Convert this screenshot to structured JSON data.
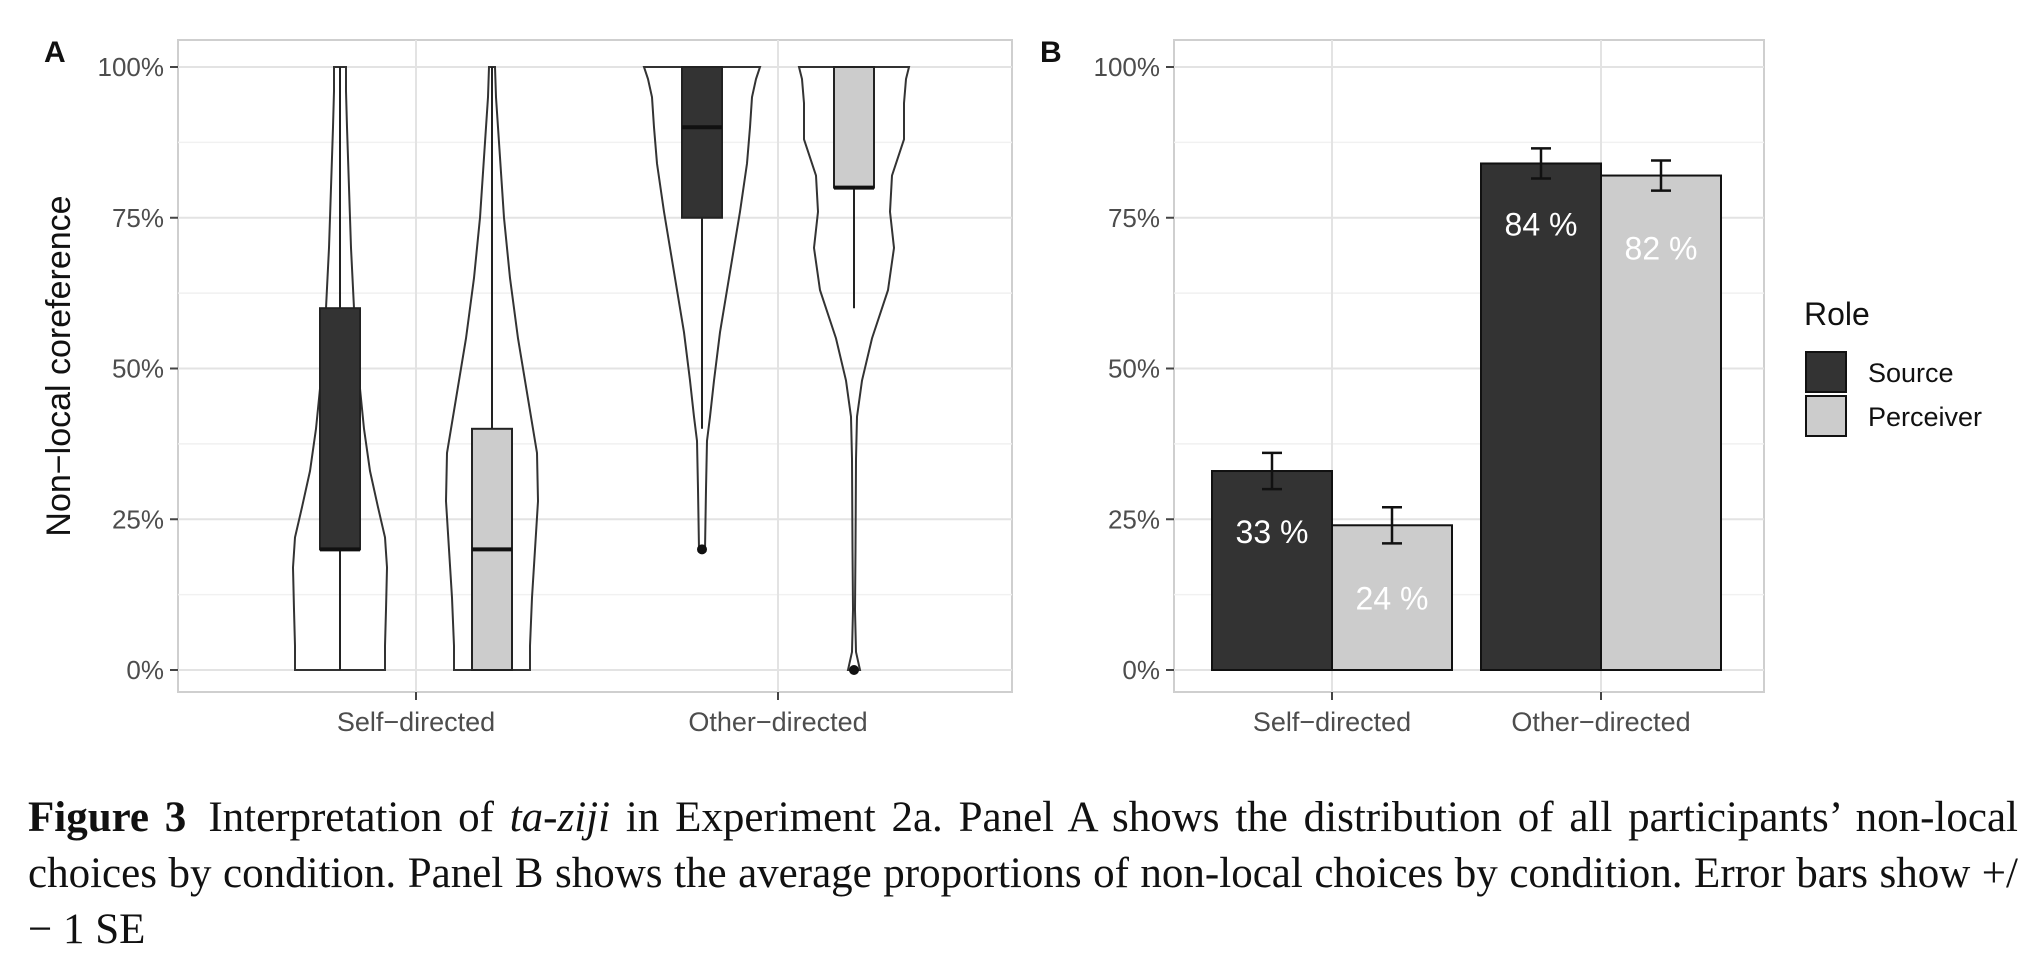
{
  "chart_data": [
    {
      "panel": "A",
      "type": "violin-box",
      "ylabel": "Non−local coreference",
      "ylim": [
        0,
        100
      ],
      "yticks": [
        0,
        25,
        50,
        75,
        100
      ],
      "ytick_labels": [
        "0%",
        "25%",
        "50%",
        "75%",
        "100%"
      ],
      "categories": [
        "Self−directed",
        "Other−directed"
      ],
      "grid": true,
      "series": [
        {
          "role": "source",
          "color": "#333333",
          "boxes": [
            {
              "category": "Self−directed",
              "min": 0,
              "q1": 20,
              "median": 20,
              "q3": 60,
              "max": 100,
              "outliers": []
            },
            {
              "category": "Other−directed",
              "min": 40,
              "q1": 75,
              "median": 90,
              "q3": 100,
              "max": 100,
              "outliers": [
                20
              ]
            }
          ]
        },
        {
          "role": "perceiver",
          "color": "#cccccc",
          "boxes": [
            {
              "category": "Self−directed",
              "min": 0,
              "q1": 0,
              "median": 20,
              "q3": 40,
              "max": 100,
              "outliers": []
            },
            {
              "category": "Other−directed",
              "min": 60,
              "q1": 80,
              "median": 80,
              "q3": 100,
              "max": 100,
              "outliers": [
                0
              ]
            }
          ]
        }
      ]
    },
    {
      "panel": "B",
      "type": "bar",
      "ylim": [
        0,
        100
      ],
      "yticks": [
        0,
        25,
        50,
        75,
        100
      ],
      "ytick_labels": [
        "0%",
        "25%",
        "50%",
        "75%",
        "100%"
      ],
      "categories": [
        "Self−directed",
        "Other−directed"
      ],
      "grid": true,
      "legend": {
        "title": "Role",
        "position": "right"
      },
      "series": [
        {
          "name": "Source",
          "color": "#333333",
          "values": [
            33,
            84
          ],
          "labels": [
            "33 %",
            "84 %"
          ],
          "se": [
            3,
            2.5
          ]
        },
        {
          "name": "Perceiver",
          "color": "#cccccc",
          "values": [
            24,
            82
          ],
          "labels": [
            "24 %",
            "82 %"
          ],
          "se": [
            3,
            2.5
          ]
        }
      ]
    }
  ],
  "caption": {
    "label": "Figure 3",
    "pre": "Interpretation of ",
    "italic": "ta-ziji",
    "post": " in Experiment 2a. Panel A shows the distribution of all participants’ non-local choices by condition. Panel B shows the average proportions of non-local choices by condition. Error bars show +/− 1 SE"
  }
}
